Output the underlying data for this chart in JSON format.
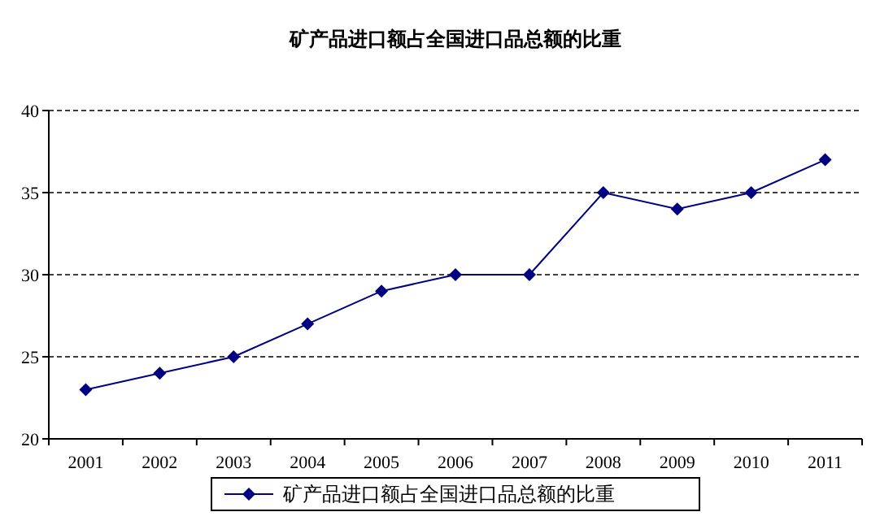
{
  "chart_data": {
    "type": "line",
    "title": "矿产品进口额占全国进口品总额的比重",
    "categories": [
      "2001",
      "2002",
      "2003",
      "2004",
      "2005",
      "2006",
      "2007",
      "2008",
      "2009",
      "2010",
      "2011"
    ],
    "series": [
      {
        "name": "矿产品进口额占全国进口品总额的比重",
        "color": "#000080",
        "values": [
          23,
          24,
          25,
          27,
          29,
          30,
          30,
          35,
          34,
          35,
          37
        ]
      }
    ],
    "ylim": [
      20,
      40
    ],
    "yticks": [
      20,
      25,
      30,
      35,
      40
    ],
    "grid": "y",
    "legend": "bottom",
    "marker": "diamond",
    "line_style": "solid"
  }
}
